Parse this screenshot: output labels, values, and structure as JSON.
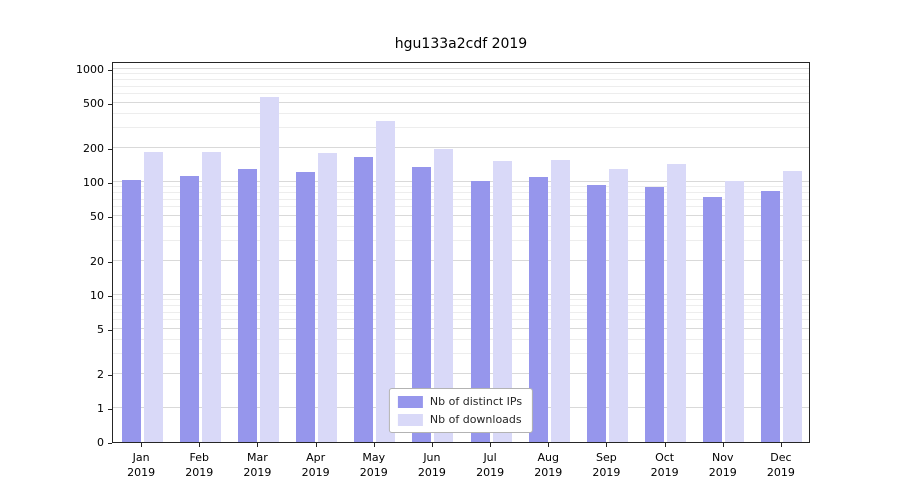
{
  "chart_data": {
    "type": "bar",
    "title": "hgu133a2cdf 2019",
    "categories": [
      "Jan 2019",
      "Feb 2019",
      "Mar 2019",
      "Apr 2019",
      "May 2019",
      "Jun 2019",
      "Jul 2019",
      "Aug 2019",
      "Sep 2019",
      "Oct 2019",
      "Nov 2019",
      "Dec 2019"
    ],
    "series": [
      {
        "name": "Nb of distinct IPs",
        "color": "#9696ec",
        "values": [
          105,
          112,
          130,
          122,
          165,
          135,
          103,
          110,
          95,
          90,
          74,
          84
        ]
      },
      {
        "name": "Nb of downloads",
        "color": "#d9d9f8",
        "values": [
          185,
          183,
          560,
          180,
          350,
          195,
          155,
          158,
          130,
          143,
          102,
          125
        ]
      }
    ],
    "xlabel": "",
    "ylabel": "",
    "yscale": "symlog",
    "yticks": [
      0,
      1,
      2,
      5,
      10,
      20,
      50,
      100,
      200,
      500,
      1000
    ],
    "ylim": [
      0,
      1000
    ],
    "grid": true,
    "legend_position": "lower center"
  },
  "colors": {
    "grid_major": "#d9d9d9",
    "grid_minor": "#ededed",
    "spine": "#262626"
  }
}
